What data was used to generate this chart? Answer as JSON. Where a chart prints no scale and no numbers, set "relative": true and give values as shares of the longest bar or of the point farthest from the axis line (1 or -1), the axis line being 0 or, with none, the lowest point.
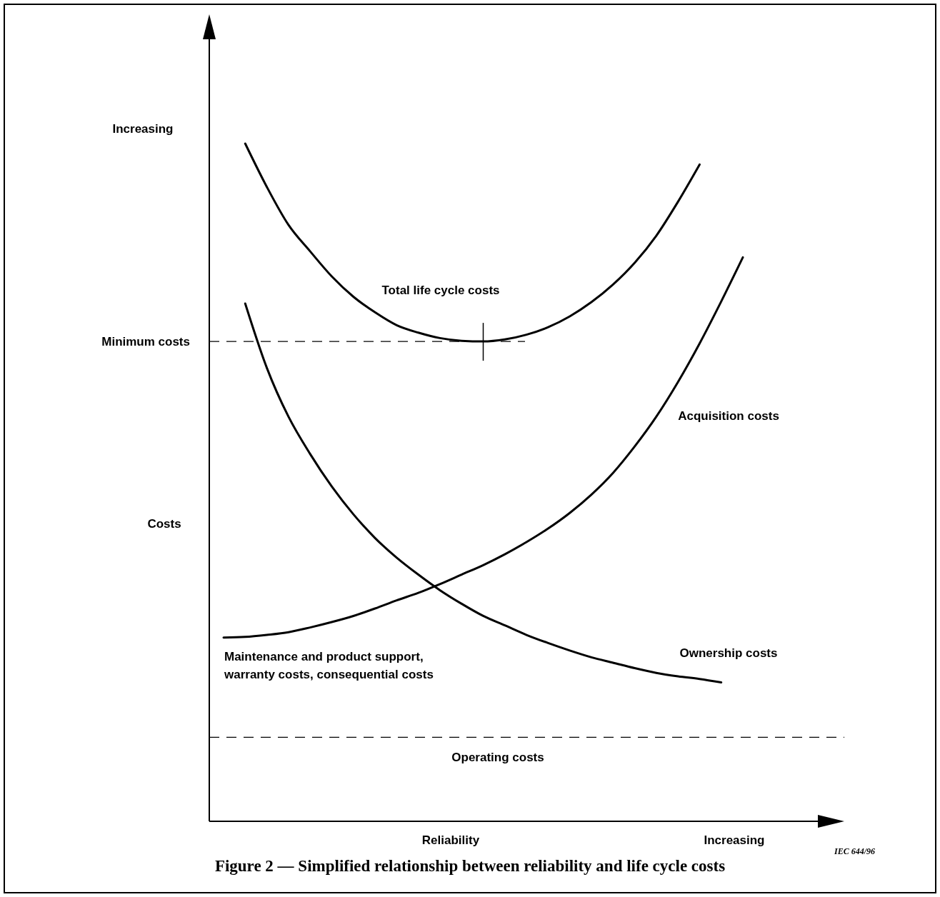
{
  "chart_data": {
    "type": "line",
    "relative": true,
    "title": "Figure 2 — Simplified relationship between reliability and life cycle costs",
    "xlabel": "Reliability",
    "ylabel": "Costs",
    "categories": [
      null,
      null,
      null,
      null,
      null,
      null,
      null,
      null,
      null,
      null,
      null,
      null,
      null,
      null,
      null,
      null,
      null,
      null,
      null,
      null,
      null,
      null,
      null,
      null,
      null
    ],
    "series": [
      {
        "name": "Total life cycle costs",
        "color": "#000000",
        "values": [
          null,
          1,
          0.936,
          0.88,
          0.841,
          0.804,
          0.774,
          0.751,
          0.732,
          0.721,
          0.713,
          0.709,
          0.708,
          0.711,
          0.718,
          0.729,
          0.745,
          0.766,
          0.792,
          0.824,
          0.864,
          0.914,
          0.969,
          null,
          null
        ]
      },
      {
        "name": "Acquisition costs",
        "color": "#000000",
        "values": [
          0.271,
          0.272,
          0.275,
          0.279,
          0.286,
          0.294,
          0.303,
          0.314,
          0.326,
          0.337,
          0.35,
          0.364,
          0.378,
          0.394,
          0.412,
          0.432,
          0.455,
          0.482,
          0.514,
          0.553,
          0.597,
          0.648,
          0.705,
          0.767,
          0.832
        ]
      },
      {
        "name": "Ownership costs",
        "color": "#000000",
        "values": [
          null,
          0.764,
          0.669,
          0.597,
          0.542,
          0.494,
          0.453,
          0.418,
          0.389,
          0.364,
          0.341,
          0.321,
          0.303,
          0.289,
          0.275,
          0.263,
          0.252,
          0.242,
          0.234,
          0.226,
          0.219,
          0.214,
          0.21,
          0.205,
          null
        ]
      }
    ],
    "ref_lines": [
      {
        "axis": "y",
        "value": 0.708,
        "label": "Minimum costs",
        "line_style": "dashed",
        "color": "#000000"
      },
      {
        "axis": "y",
        "value": 0.124,
        "label": "Operating costs",
        "line_style": "dashed",
        "color": "#000000"
      }
    ],
    "annotations": [
      "Increasing",
      "Increasing",
      "Maintenance and product support,\nwarranty costs, consequential costs",
      "IEC 644/96"
    ],
    "line_style": "solid",
    "marker": "none"
  }
}
